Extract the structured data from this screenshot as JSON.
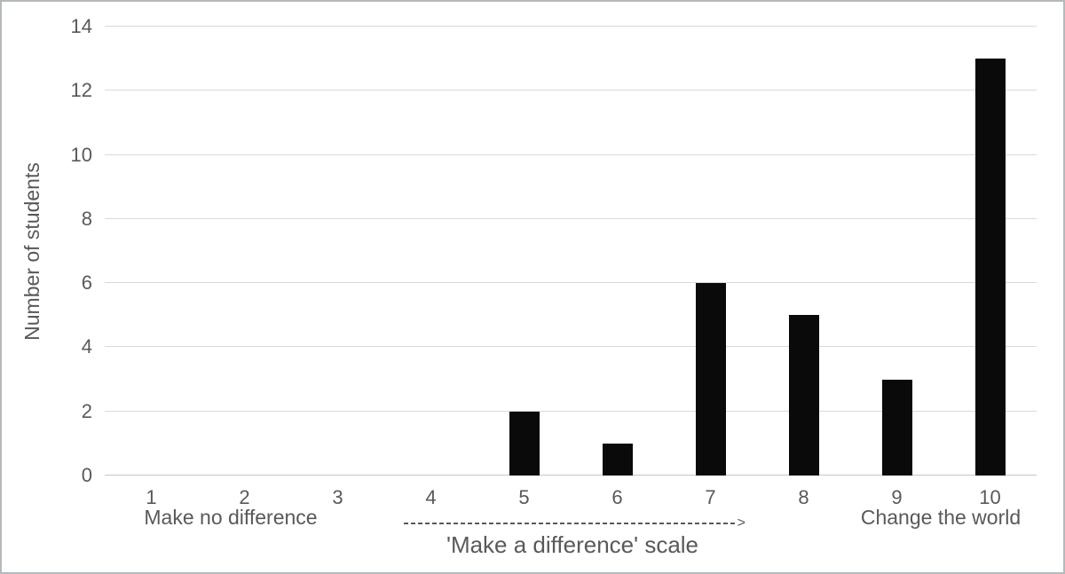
{
  "chart_data": {
    "type": "bar",
    "title": "",
    "categories": [
      "1",
      "2",
      "3",
      "4",
      "5",
      "6",
      "7",
      "8",
      "9",
      "10"
    ],
    "values": [
      0,
      0,
      0,
      0,
      2,
      1,
      6,
      5,
      3,
      13
    ],
    "xlabel": "'Make a difference' scale",
    "ylabel": "Number of students",
    "ylim": [
      0,
      14
    ],
    "yticks": [
      0,
      2,
      4,
      6,
      8,
      10,
      12,
      14
    ],
    "grid": "horizontal",
    "legend": "none",
    "bar_color": "#0a0a0a",
    "gridline_color": "#dadada",
    "axis_line_color": "#c6c6c6",
    "text_color": "#595959",
    "annotations": {
      "left_label": "Make no difference",
      "right_label": "Change the world",
      "arrow_head": ">"
    }
  }
}
